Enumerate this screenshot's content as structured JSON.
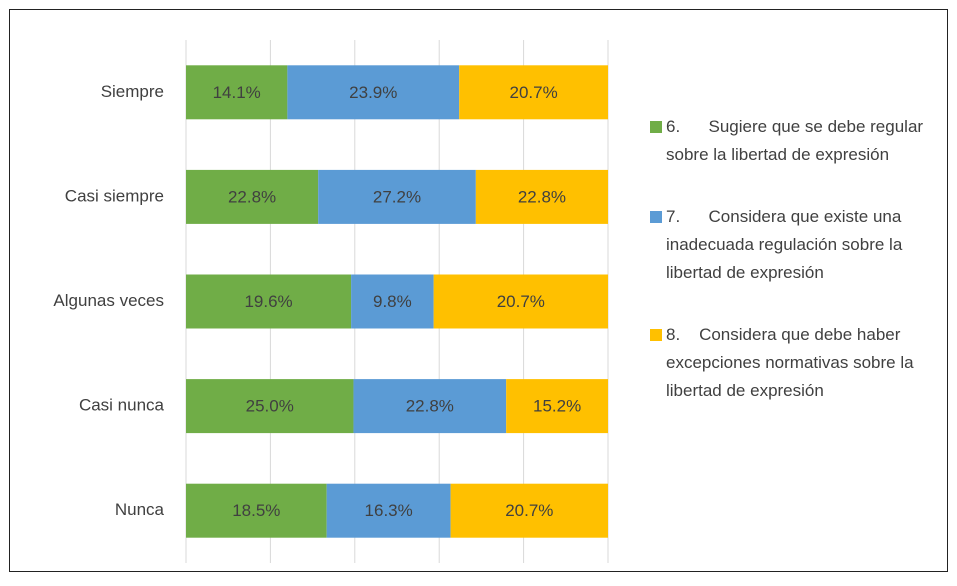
{
  "chart_data": {
    "type": "bar",
    "orientation": "horizontal",
    "stacking": "percent",
    "grid": true,
    "categories": [
      "Siempre",
      "Casi siempre",
      "Algunas veces",
      "Casi nunca",
      "Nunca"
    ],
    "series": [
      {
        "name": "6.      Sugiere que se debe regular sobre la libertad de expresión",
        "color": "#70ad47",
        "values": [
          14.1,
          22.8,
          19.6,
          25.0,
          18.5
        ],
        "value_labels": [
          "14.1%",
          "22.8%",
          "19.6%",
          "25.0%",
          "18.5%"
        ]
      },
      {
        "name": "7.      Considera que existe una inadecuada regulación sobre la libertad de expresión",
        "color": "#5b9bd5",
        "values": [
          23.9,
          27.2,
          9.8,
          22.8,
          16.3
        ],
        "value_labels": [
          "23.9%",
          "27.2%",
          "9.8%",
          "22.8%",
          "16.3%"
        ]
      },
      {
        "name": "8.    Considera que debe haber excepciones normativas sobre la libertad de expresión",
        "color": "#ffc000",
        "values": [
          20.7,
          22.8,
          20.7,
          15.2,
          20.7
        ],
        "value_labels": [
          "20.7%",
          "22.8%",
          "20.7%",
          "15.2%",
          "20.7%"
        ]
      }
    ]
  }
}
